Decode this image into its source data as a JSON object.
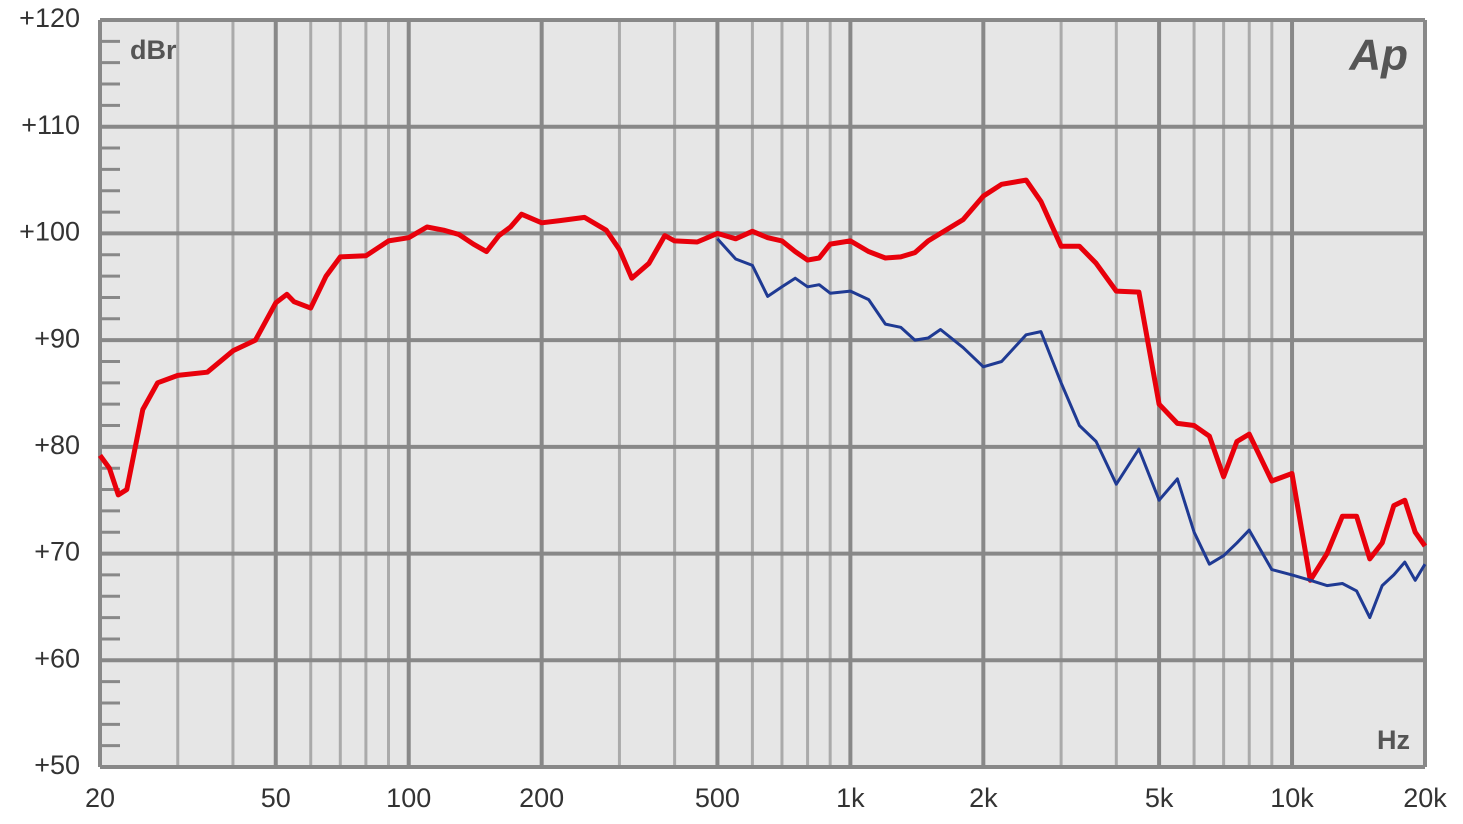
{
  "chart_data": {
    "type": "line",
    "y_unit_label": "dBr",
    "x_unit_label": "Hz",
    "logo": "Ap",
    "xscale": "log",
    "xlim": [
      20,
      20000
    ],
    "ylim": [
      50,
      120
    ],
    "xticks": [
      20,
      50,
      100,
      200,
      500,
      {
        "value": 1000,
        "label": "1k"
      },
      {
        "value": 2000,
        "label": "2k"
      },
      {
        "value": 5000,
        "label": "5k"
      },
      {
        "value": 10000,
        "label": "10k"
      },
      {
        "value": 20000,
        "label": "20k"
      }
    ],
    "yticks": [
      {
        "value": 50,
        "label": "+50"
      },
      {
        "value": 60,
        "label": "+60"
      },
      {
        "value": 70,
        "label": "+70"
      },
      {
        "value": 80,
        "label": "+80"
      },
      {
        "value": 90,
        "label": "+90"
      },
      {
        "value": 100,
        "label": "+100"
      },
      {
        "value": 110,
        "label": "+110"
      },
      {
        "value": 120,
        "label": "+120"
      }
    ],
    "grid": true,
    "minor_grid": true,
    "series": [
      {
        "color": "#e8000b",
        "x": [
          20,
          21,
          22,
          23,
          25,
          27,
          30,
          35,
          40,
          45,
          50,
          53,
          55,
          60,
          65,
          70,
          80,
          90,
          100,
          110,
          120,
          130,
          140,
          150,
          160,
          170,
          180,
          200,
          220,
          250,
          280,
          300,
          320,
          350,
          380,
          400,
          450,
          500,
          550,
          600,
          650,
          700,
          750,
          800,
          850,
          900,
          1000,
          1100,
          1200,
          1300,
          1400,
          1500,
          1600,
          1800,
          2000,
          2200,
          2500,
          2700,
          3000,
          3300,
          3600,
          4000,
          4500,
          5000,
          5500,
          6000,
          6500,
          7000,
          7500,
          8000,
          9000,
          10000,
          11000,
          12000,
          13000,
          14000,
          15000,
          16000,
          17000,
          18000,
          19000,
          20000
        ],
        "values": [
          79.2,
          78,
          75.5,
          76,
          83.5,
          86,
          86.7,
          87,
          89,
          90,
          93.5,
          94.3,
          93.6,
          93,
          96,
          97.8,
          97.9,
          99.3,
          99.6,
          100.6,
          100.3,
          99.9,
          99,
          98.3,
          99.8,
          100.6,
          101.8,
          101,
          101.2,
          101.5,
          100.3,
          98.5,
          95.8,
          97.2,
          99.8,
          99.3,
          99.2,
          100,
          99.5,
          100.2,
          99.6,
          99.3,
          98.3,
          97.5,
          97.7,
          99,
          99.3,
          98.3,
          97.7,
          97.8,
          98.2,
          99.3,
          100,
          101.3,
          103.5,
          104.6,
          105,
          103,
          98.8,
          98.8,
          97.2,
          94.6,
          94.5,
          84,
          82.2,
          82,
          81,
          77.2,
          80.5,
          81.2,
          76.8,
          77.5,
          67.5,
          70,
          73.5,
          73.5,
          69.5,
          71,
          74.5,
          75,
          72,
          70.7
        ]
      },
      {
        "color": "#1f3a93",
        "x": [
          500,
          550,
          600,
          650,
          700,
          750,
          800,
          850,
          900,
          1000,
          1100,
          1200,
          1300,
          1400,
          1500,
          1600,
          1800,
          2000,
          2200,
          2500,
          2700,
          3000,
          3300,
          3600,
          4000,
          4500,
          5000,
          5500,
          6000,
          6500,
          7000,
          7500,
          8000,
          9000,
          10000,
          11000,
          12000,
          13000,
          14000,
          15000,
          16000,
          17000,
          18000,
          19000,
          20000
        ],
        "values": [
          99.5,
          97.6,
          97,
          94.1,
          95,
          95.8,
          95,
          95.2,
          94.4,
          94.6,
          93.8,
          91.5,
          91.2,
          90,
          90.2,
          91,
          89.3,
          87.5,
          88,
          90.5,
          90.8,
          86,
          82,
          80.5,
          76.5,
          79.8,
          75,
          77,
          72,
          69,
          69.8,
          71,
          72.2,
          68.5,
          68,
          67.5,
          67,
          67.2,
          66.5,
          64,
          67,
          68,
          69.2,
          67.5,
          69
        ]
      }
    ]
  }
}
